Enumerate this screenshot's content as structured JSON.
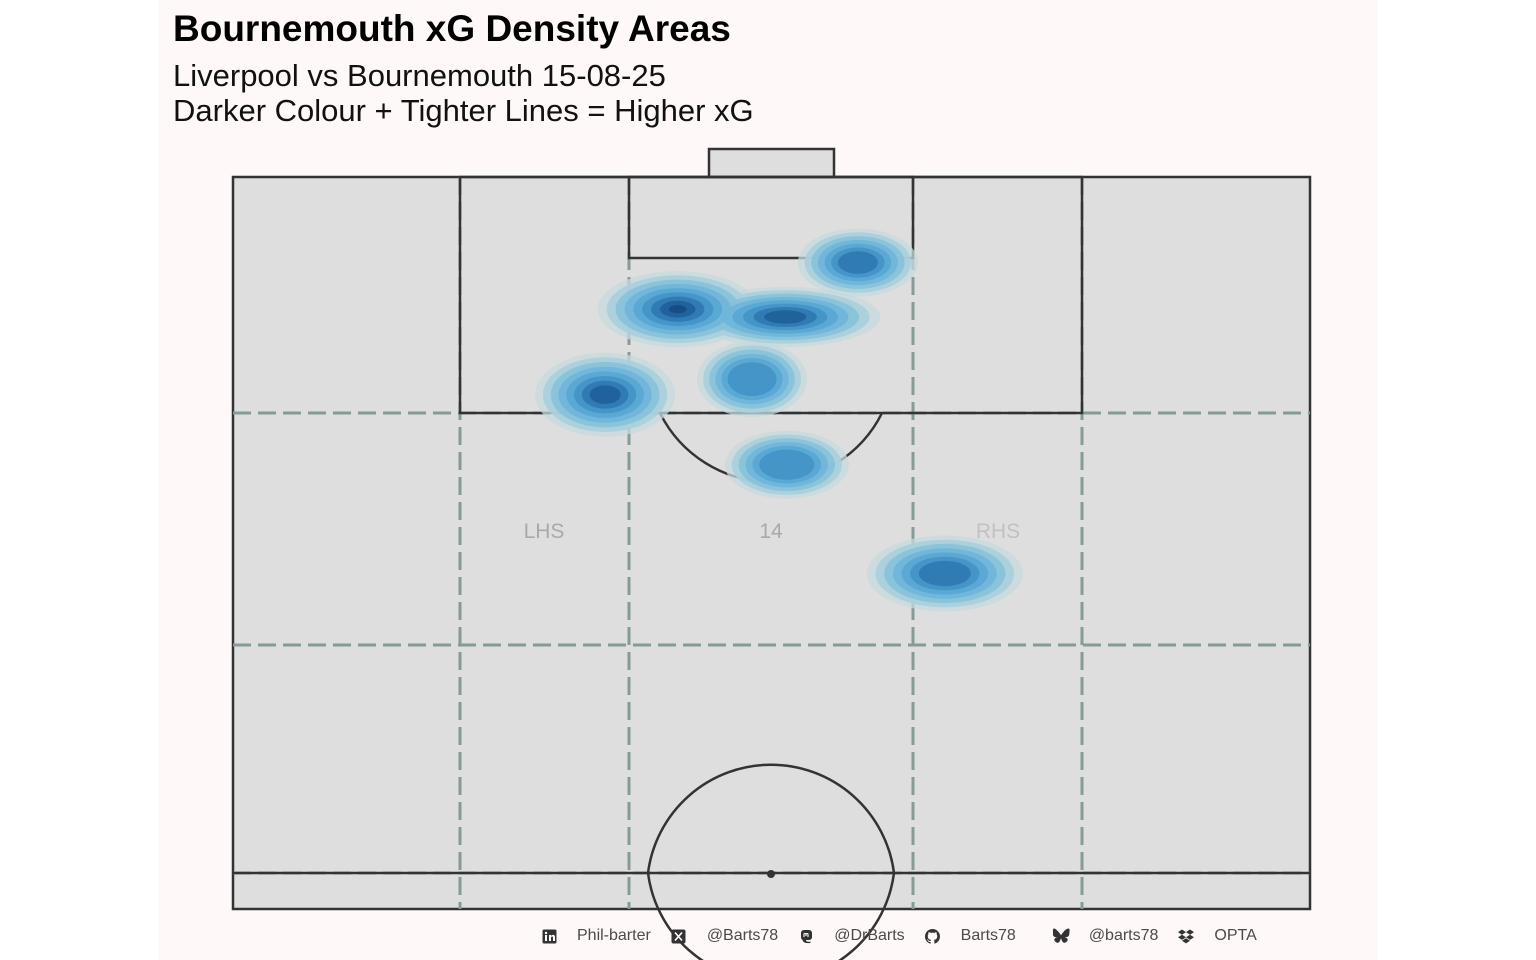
{
  "chart_data": {
    "type": "heatmap",
    "title": "Bournemouth xG Density Areas",
    "subtitle_lines": [
      "Liverpool vs Bournemouth 15-08-25",
      "Darker Colour + Tighter Lines = Higher xG"
    ],
    "zone_labels": [
      "LHS",
      "14",
      "RHS"
    ],
    "density_peaks": [
      {
        "x_m": -5.9,
        "y_m": 24.0,
        "weight": 1.0
      },
      {
        "x_m": 0.9,
        "y_m": 23.5,
        "weight": 0.85
      },
      {
        "x_m": 5.5,
        "y_m": 27.0,
        "weight": 0.75
      },
      {
        "x_m": -10.5,
        "y_m": 18.5,
        "weight": 0.85
      },
      {
        "x_m": -1.2,
        "y_m": 19.5,
        "weight": 0.65
      },
      {
        "x_m": 1.0,
        "y_m": 14.0,
        "weight": 0.7
      },
      {
        "x_m": 11.0,
        "y_m": 7.0,
        "weight": 0.75
      }
    ],
    "colors": [
      "#c4d9de",
      "#a9cfdb",
      "#86c2d9",
      "#6fb6da",
      "#58a6d3",
      "#4292c6",
      "#2f78b3",
      "#1f5f99",
      "#174a82"
    ],
    "pitch_colors": {
      "fill": "#dedede",
      "lines": "#333333",
      "zones": "#869b98"
    }
  },
  "footer": {
    "items": [
      {
        "icon": "linkedin-icon",
        "text": "Phil-barter"
      },
      {
        "icon": "x-twitter-icon",
        "text": "@Barts78"
      },
      {
        "icon": "mastodon-icon",
        "text": "@DrBarts"
      },
      {
        "icon": "github-icon",
        "text": "Barts78"
      },
      {
        "icon": "bluesky-icon",
        "text": "@barts78"
      },
      {
        "icon": "dropbox-icon",
        "text": "OPTA"
      }
    ]
  }
}
